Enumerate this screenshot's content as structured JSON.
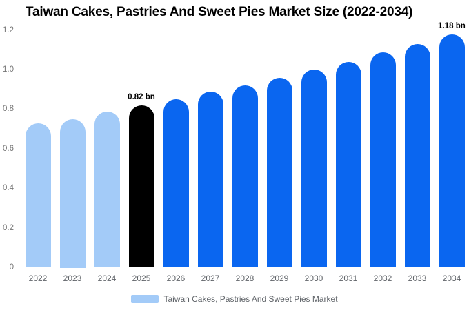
{
  "title": "Taiwan Cakes, Pastries And Sweet Pies Market Size (2022-2034)",
  "legend": {
    "label": "Taiwan Cakes, Pastries And Sweet Pies Market"
  },
  "colors": {
    "historical_bar": "#a3cbf8",
    "base_year_bar": "#000000",
    "forecast_bar": "#0a66f0",
    "axis_line": "#dcdcdc",
    "y_tick_text": "#757575",
    "x_tick_text": "#5f6368",
    "legend_text": "#5f6368",
    "annotation_text": "#000000",
    "background": "#ffffff"
  },
  "chart_data": {
    "type": "bar",
    "title": "Taiwan Cakes, Pastries And Sweet Pies Market Size (2022-2034)",
    "unit": "bn",
    "categories": [
      "2022",
      "2023",
      "2024",
      "2025",
      "2026",
      "2027",
      "2028",
      "2029",
      "2030",
      "2031",
      "2032",
      "2033",
      "2034"
    ],
    "values": [
      0.73,
      0.75,
      0.79,
      0.82,
      0.85,
      0.89,
      0.92,
      0.96,
      1.0,
      1.04,
      1.09,
      1.13,
      1.18
    ],
    "bar_roles": [
      "historical",
      "historical",
      "historical",
      "base_year",
      "forecast",
      "forecast",
      "forecast",
      "forecast",
      "forecast",
      "forecast",
      "forecast",
      "forecast",
      "forecast"
    ],
    "ylim": [
      0,
      1.2
    ],
    "yticks": [
      0,
      0.2,
      0.4,
      0.6,
      0.8,
      1.0,
      1.2
    ],
    "ytick_labels": [
      "0",
      "0.2",
      "0.4",
      "0.6",
      "0.8",
      "1.0",
      "1.2"
    ],
    "grid": false,
    "legend_position": "bottom",
    "legend_entries": [
      "Taiwan Cakes, Pastries And Sweet Pies Market"
    ],
    "annotations": [
      {
        "category": "2025",
        "text": "0.82 bn"
      },
      {
        "category": "2034",
        "text": "1.18 bn"
      }
    ]
  }
}
